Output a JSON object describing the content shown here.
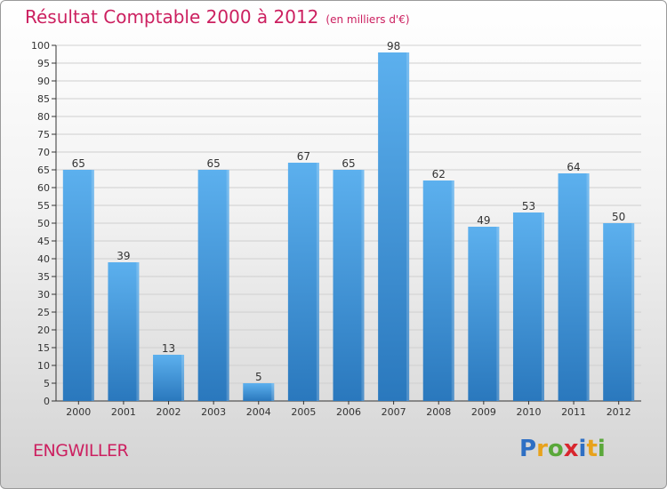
{
  "title": "Résultat Comptable 2000 à 2012",
  "unit_note": "(en milliers d'€)",
  "town": "ENGWILLER",
  "logo": {
    "text": "Proxiti",
    "letters": [
      {
        "ch": "P",
        "color": "#2e6fc4"
      },
      {
        "ch": "r",
        "color": "#e8a21c"
      },
      {
        "ch": "o",
        "color": "#5aa83a"
      },
      {
        "ch": "x",
        "color": "#d8262e"
      },
      {
        "ch": "i",
        "color": "#2e6fc4"
      },
      {
        "ch": "t",
        "color": "#e8a21c"
      },
      {
        "ch": "i",
        "color": "#5aa83a"
      }
    ]
  },
  "colors": {
    "bar_top": "#5cb0ee",
    "bar_bottom": "#2a78bd",
    "title": "#cc2060",
    "axis": "#333333",
    "grid": "#cfcfcf"
  },
  "chart_data": {
    "type": "bar",
    "title": "Résultat Comptable 2000 à 2012",
    "xlabel": "",
    "ylabel": "",
    "ylim": [
      0,
      100
    ],
    "ytick_step": 5,
    "grid": true,
    "categories": [
      "2000",
      "2001",
      "2002",
      "2003",
      "2004",
      "2005",
      "2006",
      "2007",
      "2008",
      "2009",
      "2010",
      "2011",
      "2012"
    ],
    "values": [
      65,
      39,
      13,
      65,
      5,
      67,
      65,
      98,
      62,
      49,
      53,
      64,
      50
    ]
  }
}
